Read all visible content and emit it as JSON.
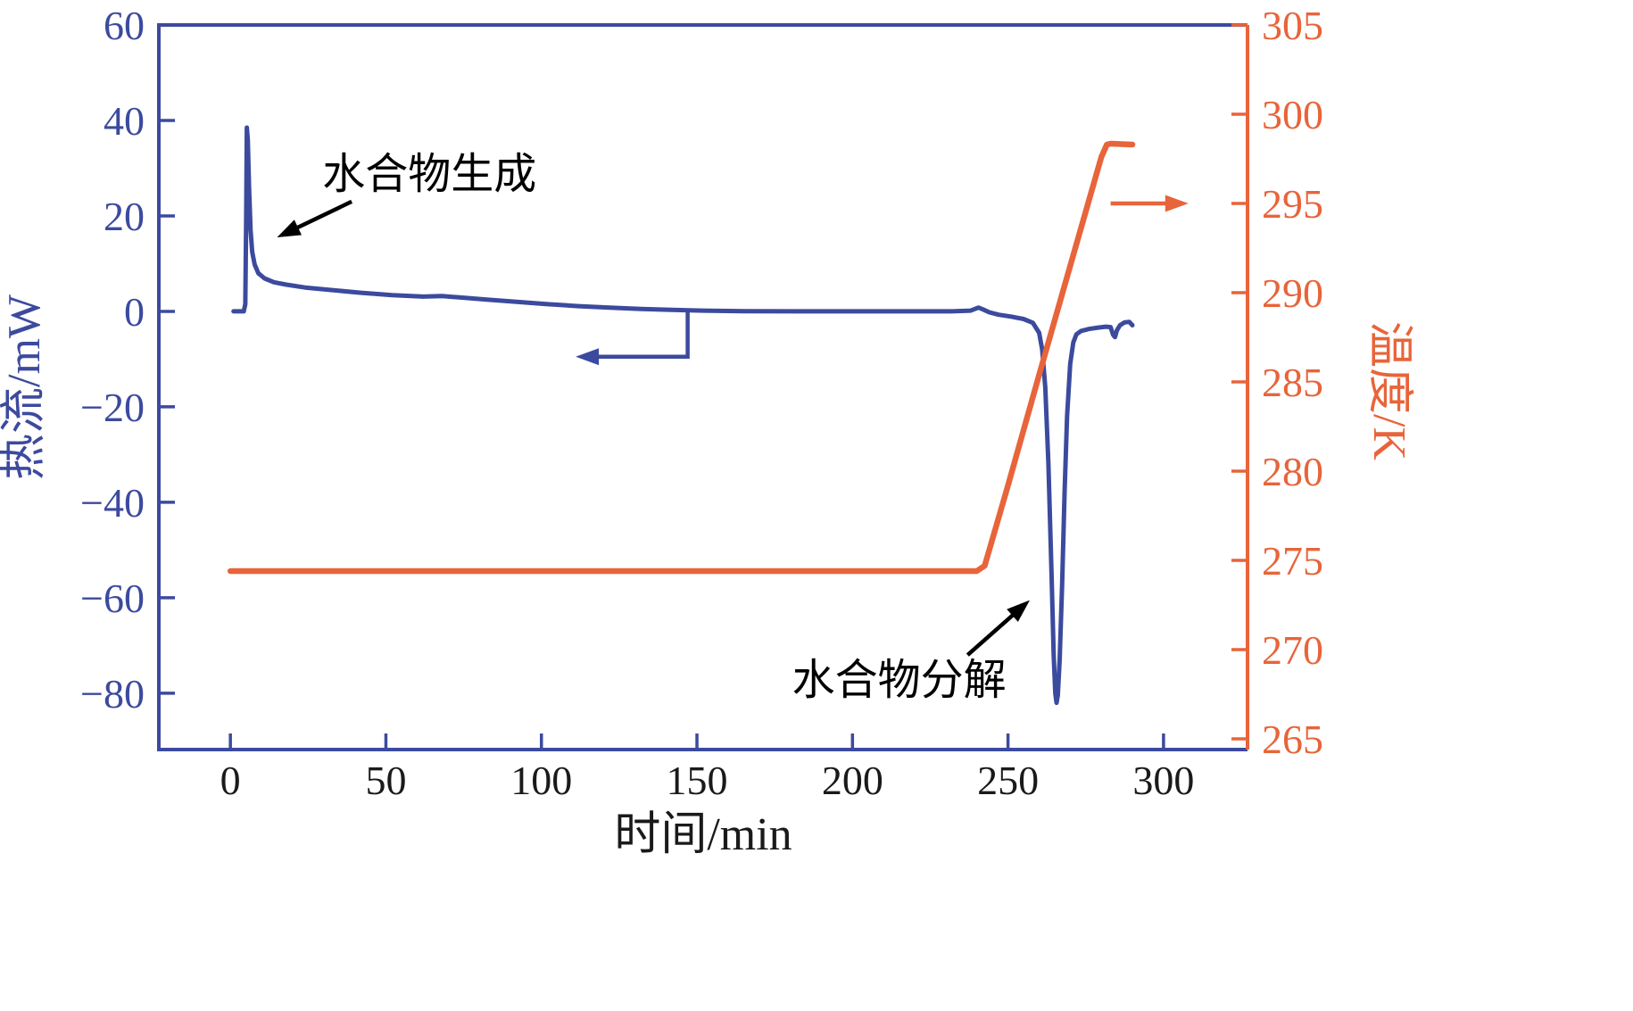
{
  "chart_data": {
    "type": "line",
    "title": "",
    "background": "#ffffff",
    "x_axis": {
      "label": "时间/min",
      "ticks": [
        0,
        50,
        100,
        150,
        200,
        250,
        300
      ],
      "range": [
        -23,
        327
      ],
      "color": "#1a1a1a"
    },
    "y_left_axis": {
      "label": "热流/mW",
      "ticks": [
        60,
        40,
        20,
        0,
        -20,
        -40,
        -60,
        -80
      ],
      "range": [
        -91.8,
        60
      ],
      "color": "#3c4a9e"
    },
    "y_right_axis": {
      "label": "温度/K",
      "ticks": [
        305,
        300,
        295,
        290,
        285,
        280,
        275,
        270,
        265
      ],
      "range": [
        264.4,
        305
      ],
      "color": "#e8643a"
    },
    "series": [
      {
        "name": "heat-flow",
        "axis": "left",
        "color": "#3c4a9e",
        "width": 5,
        "points": [
          [
            1,
            0
          ],
          [
            4.3,
            0
          ],
          [
            4.8,
            1.5
          ],
          [
            5.1,
            20
          ],
          [
            5.3,
            38.5
          ],
          [
            5.6,
            36
          ],
          [
            6,
            26
          ],
          [
            6.5,
            17
          ],
          [
            7,
            12.5
          ],
          [
            7.8,
            9.8
          ],
          [
            9,
            8
          ],
          [
            11,
            6.9
          ],
          [
            14,
            6.1
          ],
          [
            18,
            5.6
          ],
          [
            24,
            5.0
          ],
          [
            32,
            4.5
          ],
          [
            42,
            3.9
          ],
          [
            52,
            3.4
          ],
          [
            62,
            3.1
          ],
          [
            68,
            3.2
          ],
          [
            74,
            2.9
          ],
          [
            82,
            2.5
          ],
          [
            92,
            2.0
          ],
          [
            102,
            1.5
          ],
          [
            112,
            1.1
          ],
          [
            122,
            0.8
          ],
          [
            132,
            0.5
          ],
          [
            142,
            0.3
          ],
          [
            152,
            0.15
          ],
          [
            165,
            0.05
          ],
          [
            185,
            0
          ],
          [
            215,
            0
          ],
          [
            232,
            0
          ],
          [
            238,
            0.15
          ],
          [
            240.5,
            0.8
          ],
          [
            242,
            0.4
          ],
          [
            244,
            -0.2
          ],
          [
            247,
            -0.7
          ],
          [
            251,
            -1.1
          ],
          [
            255,
            -1.6
          ],
          [
            258,
            -2.4
          ],
          [
            260,
            -4.5
          ],
          [
            261,
            -8
          ],
          [
            262,
            -16
          ],
          [
            263,
            -32
          ],
          [
            264,
            -55
          ],
          [
            264.7,
            -72
          ],
          [
            265.2,
            -80
          ],
          [
            265.6,
            -82
          ],
          [
            266,
            -80.5
          ],
          [
            266.6,
            -73
          ],
          [
            267.4,
            -57
          ],
          [
            268.2,
            -38
          ],
          [
            269,
            -22
          ],
          [
            270,
            -11
          ],
          [
            271,
            -6.5
          ],
          [
            272,
            -4.8
          ],
          [
            273.5,
            -4.1
          ],
          [
            276,
            -3.7
          ],
          [
            279,
            -3.4
          ],
          [
            281.5,
            -3.2
          ],
          [
            283,
            -3.3
          ],
          [
            283.8,
            -4.9
          ],
          [
            284.4,
            -5.4
          ],
          [
            285,
            -4
          ],
          [
            286,
            -2.9
          ],
          [
            287.5,
            -2.3
          ],
          [
            289,
            -2.2
          ],
          [
            290,
            -2.9
          ]
        ]
      },
      {
        "name": "temperature",
        "axis": "right",
        "color": "#e8643a",
        "width": 6.5,
        "points": [
          [
            0,
            274.4
          ],
          [
            240,
            274.4
          ],
          [
            242.5,
            274.7
          ],
          [
            250,
            279.2
          ],
          [
            260,
            285.4
          ],
          [
            270,
            291.5
          ],
          [
            280,
            297.6
          ],
          [
            281.8,
            298.3
          ],
          [
            283,
            298.35
          ],
          [
            290,
            298.3
          ]
        ]
      }
    ],
    "annotations": {
      "hydrate_formation": {
        "text": "水合物生成",
        "t": 64,
        "v": 29,
        "axis": "left",
        "color": "#000000"
      },
      "hydrate_formation_arrow": {
        "points": [
          [
            39,
            23
          ],
          [
            15,
            15.5
          ]
        ],
        "axis": "left",
        "color": "#000000"
      },
      "hydrate_decomposition": {
        "text": "水合物分解",
        "t": 215,
        "v": -77,
        "axis": "left",
        "color": "#000000"
      },
      "hydrate_decomposition_arrow": {
        "points": [
          [
            237,
            -72
          ],
          [
            257,
            -60.5
          ]
        ],
        "axis": "left",
        "color": "#000000"
      },
      "left_axis_pointer": {
        "points": [
          [
            147,
            0
          ],
          [
            147,
            -9.5
          ],
          [
            111,
            -9.5
          ]
        ],
        "axis": "left",
        "color": "#3c4a9e"
      },
      "right_axis_pointer": {
        "points": [
          [
            283,
            295
          ],
          [
            308,
            295
          ]
        ],
        "axis": "right",
        "color": "#e8643a"
      }
    }
  }
}
